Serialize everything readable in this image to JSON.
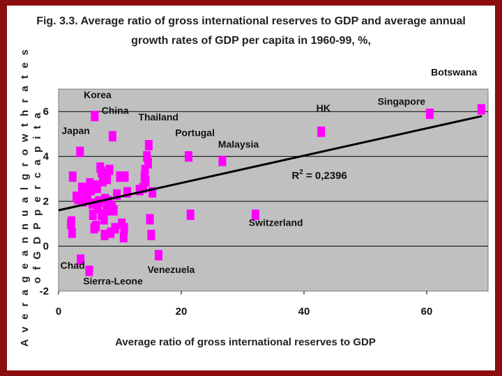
{
  "colors": {
    "frame": "#8b0d0d",
    "plot_bg": "#c0c0c0",
    "marker": "#ff00ff",
    "trendline": "#000000"
  },
  "chart_data": {
    "type": "scatter",
    "title_lines": [
      "Fig. 3.3. Average ratio of gross international reserves to GDP and average annual",
      "growth rates of GDP per capita in 1960-99, %,"
    ],
    "xlabel": "Average ratio of gross international reserves to GDP",
    "ylabel_lines": [
      "A v e r a g e   a n n u a l   g r o w t h   r a t e s",
      "o f   G D P   p e r   c a p i t a"
    ],
    "xlim": [
      0,
      70
    ],
    "ylim": [
      -2,
      7
    ],
    "xticks": [
      0,
      20,
      40,
      60
    ],
    "yticks": [
      -2,
      0,
      2,
      4,
      6
    ],
    "grid": true,
    "trendline": {
      "x": [
        0,
        69
      ],
      "y": [
        1.6,
        5.8
      ]
    },
    "r2_label": {
      "prefix": "R",
      "sup": "2",
      "value": " = 0,2396",
      "x": 38,
      "y": 3.0
    },
    "points": [
      [
        2.0,
        1.0
      ],
      [
        2.1,
        1.1
      ],
      [
        2.2,
        0.6
      ],
      [
        2.3,
        3.1
      ],
      [
        2.9,
        2.2
      ],
      [
        3.2,
        2.1
      ],
      [
        3.5,
        4.2
      ],
      [
        3.8,
        2.6
      ],
      [
        3.6,
        -0.6
      ],
      [
        4.0,
        2.0
      ],
      [
        4.2,
        2.5
      ],
      [
        4.5,
        2.3
      ],
      [
        4.7,
        2.1
      ],
      [
        5.0,
        -1.1
      ],
      [
        5.1,
        2.8
      ],
      [
        5.3,
        2.5
      ],
      [
        5.5,
        1.9
      ],
      [
        5.6,
        1.4
      ],
      [
        5.8,
        0.8
      ],
      [
        5.9,
        5.8
      ],
      [
        6.0,
        2.7
      ],
      [
        6.1,
        0.9
      ],
      [
        6.3,
        2.6
      ],
      [
        6.4,
        1.7
      ],
      [
        6.6,
        2.0
      ],
      [
        6.8,
        3.5
      ],
      [
        7.0,
        3.3
      ],
      [
        7.0,
        1.4
      ],
      [
        7.2,
        2.9
      ],
      [
        7.3,
        3.2
      ],
      [
        7.4,
        1.2
      ],
      [
        7.5,
        0.5
      ],
      [
        7.6,
        2.1
      ],
      [
        7.8,
        1.6
      ],
      [
        7.9,
        3.0
      ],
      [
        8.1,
        2.0
      ],
      [
        8.3,
        3.4
      ],
      [
        8.5,
        0.6
      ],
      [
        8.7,
        1.8
      ],
      [
        8.8,
        4.9
      ],
      [
        9.0,
        1.6
      ],
      [
        9.2,
        0.8
      ],
      [
        9.5,
        2.3
      ],
      [
        10.0,
        3.1
      ],
      [
        10.3,
        1.0
      ],
      [
        10.6,
        0.4
      ],
      [
        10.7,
        0.8
      ],
      [
        10.8,
        3.1
      ],
      [
        11.2,
        2.4
      ],
      [
        13.2,
        2.5
      ],
      [
        13.8,
        2.6
      ],
      [
        14.0,
        3.1
      ],
      [
        14.1,
        3.4
      ],
      [
        14.2,
        2.9
      ],
      [
        14.4,
        4.0
      ],
      [
        14.6,
        3.7
      ],
      [
        14.7,
        4.5
      ],
      [
        14.9,
        1.2
      ],
      [
        15.1,
        0.5
      ],
      [
        15.3,
        2.4
      ],
      [
        16.3,
        -0.4
      ],
      [
        21.2,
        4.0
      ],
      [
        21.5,
        1.4
      ],
      [
        26.7,
        3.8
      ],
      [
        32.1,
        1.4
      ],
      [
        42.8,
        5.1
      ],
      [
        60.5,
        5.9
      ],
      [
        68.9,
        6.1
      ]
    ],
    "annotations": [
      {
        "text": "Botswana",
        "x": 60.7,
        "y": 7.6
      },
      {
        "text": "Singapore",
        "x": 52.0,
        "y": 6.3
      },
      {
        "text": "HK",
        "x": 42.0,
        "y": 6.0
      },
      {
        "text": "Korea",
        "x": 4.1,
        "y": 6.6
      },
      {
        "text": "China",
        "x": 7.0,
        "y": 5.9
      },
      {
        "text": "Japan",
        "x": 0.5,
        "y": 5.0
      },
      {
        "text": "Thailand",
        "x": 13.0,
        "y": 5.6
      },
      {
        "text": "Portugal",
        "x": 19.0,
        "y": 4.9
      },
      {
        "text": "Malaysia",
        "x": 26.0,
        "y": 4.4
      },
      {
        "text": "Switzerland",
        "x": 31.0,
        "y": 0.9
      },
      {
        "text": "Chad",
        "x": 0.3,
        "y": -1.0
      },
      {
        "text": "Sierra-Leone",
        "x": 4.0,
        "y": -1.7
      },
      {
        "text": "Venezuela",
        "x": 14.5,
        "y": -1.2
      }
    ]
  }
}
